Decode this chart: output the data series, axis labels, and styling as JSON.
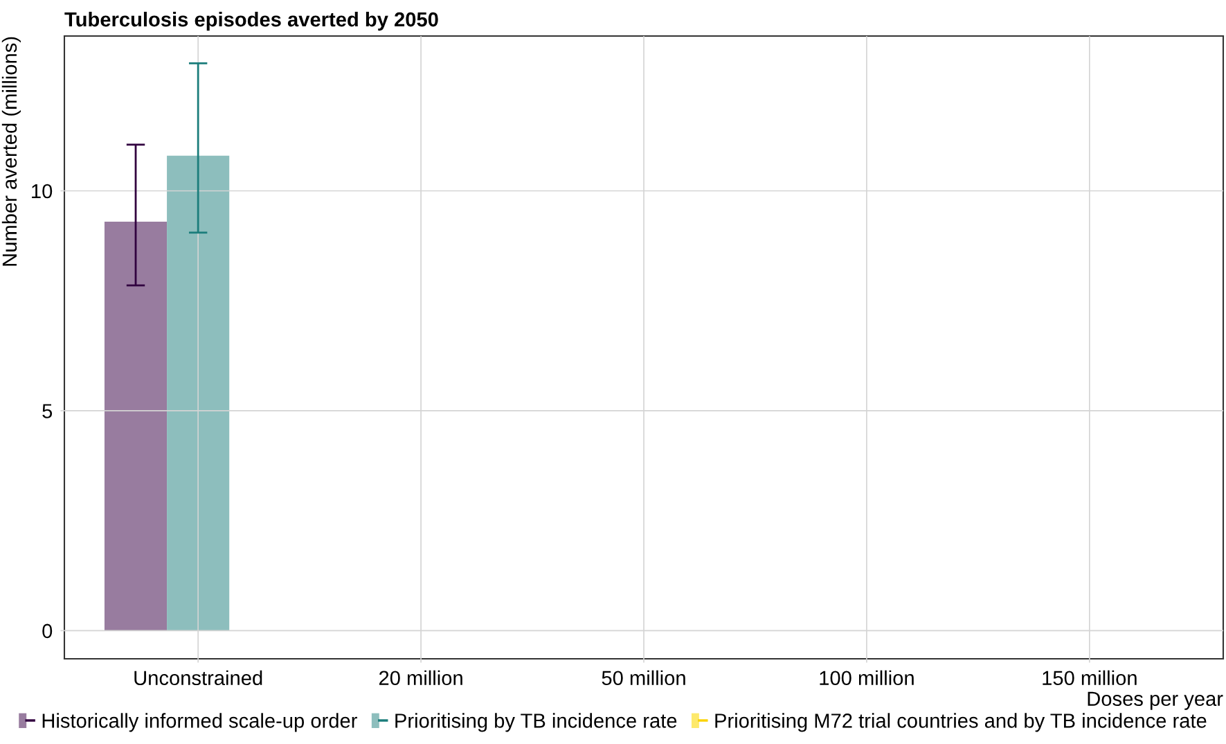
{
  "chart_data": {
    "type": "bar",
    "title": "Tuberculosis episodes averted by 2050",
    "xlabel": "Doses per year",
    "ylabel": "Number averted (millions)",
    "categories": [
      "Unconstrained",
      "20 million",
      "50 million",
      "100 million",
      "150 million"
    ],
    "series": [
      {
        "name": "Historically informed scale-up order",
        "color": "#987c9f",
        "values": [
          9.3,
          null,
          null,
          null,
          null
        ],
        "errors": [
          [
            7.85,
            11.05
          ],
          null,
          null,
          null,
          null
        ]
      },
      {
        "name": "Prioritising by TB incidence rate",
        "color": "#8dbebd",
        "values": [
          10.8,
          null,
          null,
          null,
          null
        ],
        "errors": [
          [
            9.05,
            12.9
          ],
          null,
          null,
          null,
          null
        ]
      },
      {
        "name": "Prioritising M72 trial countries and by TB incidence rate",
        "color": "#fde96b",
        "values": [
          null,
          null,
          null,
          null,
          null
        ]
      }
    ],
    "ylim": [
      -0.64,
      13.52
    ],
    "yticks": [
      0,
      5,
      10
    ],
    "grid": true,
    "legend": "bottom"
  }
}
